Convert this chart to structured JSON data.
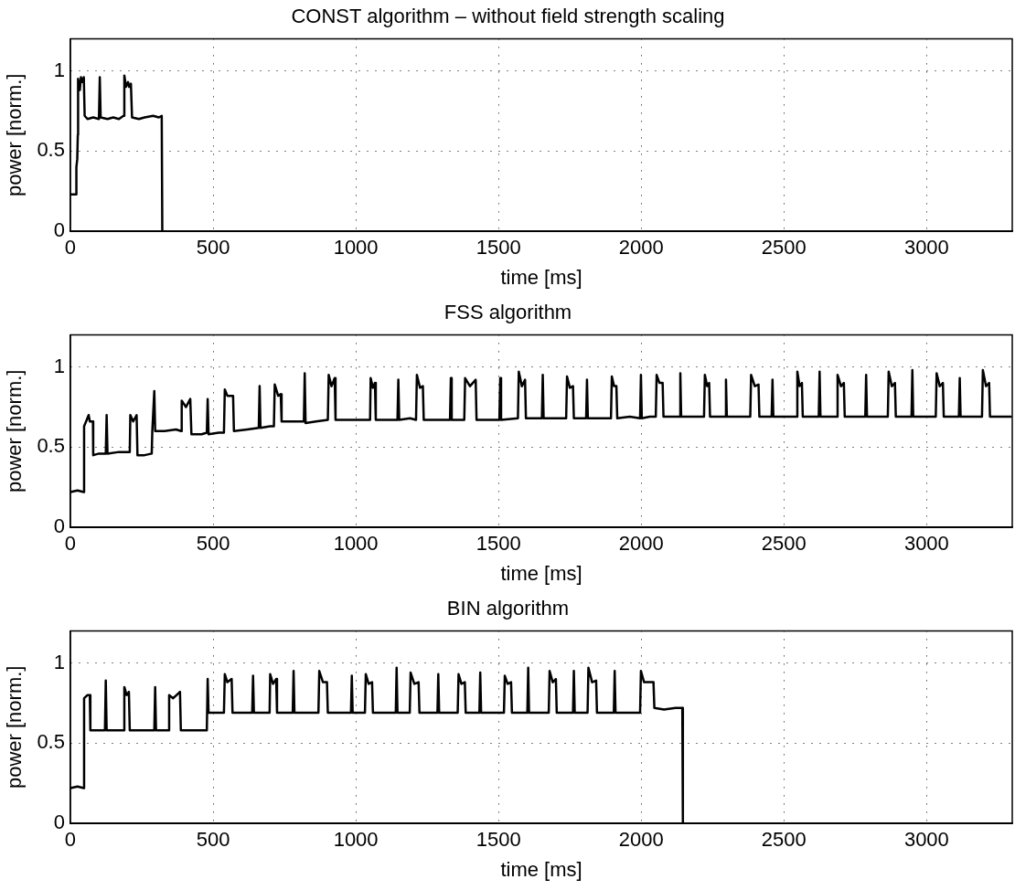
{
  "chart_data": [
    {
      "type": "line",
      "title": "CONST algorithm – without field strength scaling",
      "xlabel": "time [ms]",
      "ylabel": "power [norm.]",
      "xlim": [
        0,
        3300
      ],
      "xticks": [
        0,
        500,
        1000,
        1500,
        2000,
        2500,
        3000
      ],
      "ylim": [
        0,
        1.2
      ],
      "yticks": [
        0,
        0.5,
        1
      ],
      "grid": true,
      "line_style": "solid",
      "x": [
        0,
        20,
        21,
        24,
        26,
        27,
        33,
        37,
        42,
        47,
        50,
        60,
        80,
        100,
        103,
        106,
        130,
        150,
        170,
        186,
        189,
        195,
        202,
        206,
        212,
        216,
        240,
        260,
        290,
        310,
        320,
        322,
        3300
      ],
      "series": [
        {
          "color": "#000000",
          "values": [
            0.23,
            0.23,
            0.4,
            0.45,
            0.6,
            0.95,
            0.88,
            0.96,
            0.93,
            0.96,
            0.72,
            0.7,
            0.71,
            0.7,
            0.96,
            0.71,
            0.7,
            0.71,
            0.7,
            0.72,
            0.97,
            0.9,
            0.93,
            0.9,
            0.92,
            0.71,
            0.7,
            0.71,
            0.72,
            0.71,
            0.72,
            0,
            0
          ]
        }
      ]
    },
    {
      "type": "line",
      "title": "FSS algorithm",
      "xlabel": "time [ms]",
      "ylabel": "power [norm.]",
      "xlim": [
        0,
        3300
      ],
      "xticks": [
        0,
        500,
        1000,
        1500,
        2000,
        2500,
        3000
      ],
      "ylim": [
        0,
        1.2
      ],
      "yticks": [
        0,
        0.5,
        1
      ],
      "grid": true,
      "line_style": "solid",
      "x": [
        0,
        25,
        47,
        48,
        55,
        64,
        68,
        79,
        80,
        100,
        124,
        127,
        130,
        170,
        200,
        208,
        210,
        220,
        232,
        235,
        260,
        285,
        287,
        294,
        297,
        330,
        370,
        388,
        390,
        405,
        420,
        424,
        460,
        478,
        481,
        484,
        520,
        538,
        541,
        550,
        570,
        573,
        620,
        660,
        663,
        666,
        700,
        713,
        716,
        728,
        737,
        740,
        780,
        818,
        821,
        824,
        860,
        902,
        905,
        915,
        926,
        929,
        980,
        1030,
        1050,
        1052,
        1060,
        1067,
        1070,
        1110,
        1146,
        1149,
        1152,
        1190,
        1211,
        1214,
        1225,
        1235,
        1238,
        1290,
        1330,
        1333,
        1336,
        1380,
        1383,
        1400,
        1420,
        1423,
        1470,
        1503,
        1506,
        1509,
        1568,
        1571,
        1582,
        1593,
        1596,
        1630,
        1652,
        1655,
        1658,
        1700,
        1737,
        1740,
        1750,
        1761,
        1764,
        1790,
        1807,
        1810,
        1813,
        1860,
        1894,
        1897,
        1905,
        1913,
        1916,
        1960,
        1996,
        1999,
        2002,
        2030,
        2051,
        2054,
        2064,
        2075,
        2078,
        2110,
        2134,
        2137,
        2140,
        2190,
        2220,
        2223,
        2231,
        2238,
        2241,
        2270,
        2294,
        2297,
        2300,
        2350,
        2382,
        2385,
        2398,
        2411,
        2414,
        2440,
        2457,
        2460,
        2463,
        2510,
        2544,
        2547,
        2555,
        2563,
        2566,
        2600,
        2622,
        2625,
        2628,
        2660,
        2685,
        2688,
        2700,
        2710,
        2713,
        2750,
        2785,
        2788,
        2791,
        2830,
        2864,
        2867,
        2878,
        2889,
        2892,
        2920,
        2947,
        2950,
        2953,
        3000,
        3032,
        3035,
        3046,
        3057,
        3060,
        3090,
        3113,
        3116,
        3119,
        3160,
        3194,
        3197,
        3208,
        3219,
        3222,
        3260,
        3295
      ],
      "series": [
        {
          "color": "#000000",
          "values": [
            0.22,
            0.23,
            0.22,
            0.63,
            0.66,
            0.7,
            0.66,
            0.66,
            0.45,
            0.46,
            0.46,
            0.7,
            0.46,
            0.47,
            0.47,
            0.47,
            0.7,
            0.66,
            0.7,
            0.45,
            0.45,
            0.46,
            0.6,
            0.85,
            0.6,
            0.6,
            0.61,
            0.6,
            0.79,
            0.75,
            0.8,
            0.58,
            0.58,
            0.59,
            0.8,
            0.58,
            0.59,
            0.59,
            0.86,
            0.82,
            0.82,
            0.6,
            0.61,
            0.62,
            0.88,
            0.62,
            0.63,
            0.63,
            0.89,
            0.82,
            0.83,
            0.66,
            0.66,
            0.66,
            0.96,
            0.65,
            0.66,
            0.67,
            0.95,
            0.88,
            0.93,
            0.67,
            0.67,
            0.67,
            0.67,
            0.93,
            0.87,
            0.9,
            0.67,
            0.67,
            0.67,
            0.92,
            0.67,
            0.68,
            0.67,
            0.95,
            0.87,
            0.88,
            0.67,
            0.67,
            0.67,
            0.93,
            0.67,
            0.67,
            0.93,
            0.88,
            0.92,
            0.67,
            0.67,
            0.67,
            0.93,
            0.67,
            0.68,
            0.97,
            0.88,
            0.92,
            0.68,
            0.68,
            0.68,
            0.95,
            0.68,
            0.68,
            0.68,
            0.94,
            0.87,
            0.88,
            0.68,
            0.68,
            0.68,
            0.92,
            0.68,
            0.68,
            0.68,
            0.94,
            0.88,
            0.88,
            0.68,
            0.69,
            0.68,
            0.95,
            0.68,
            0.69,
            0.69,
            0.95,
            0.9,
            0.9,
            0.69,
            0.69,
            0.69,
            0.96,
            0.69,
            0.69,
            0.69,
            0.95,
            0.88,
            0.9,
            0.69,
            0.69,
            0.69,
            0.92,
            0.69,
            0.69,
            0.69,
            0.95,
            0.88,
            0.89,
            0.69,
            0.69,
            0.69,
            0.92,
            0.69,
            0.69,
            0.69,
            0.97,
            0.88,
            0.9,
            0.69,
            0.69,
            0.69,
            0.97,
            0.69,
            0.69,
            0.69,
            0.95,
            0.88,
            0.9,
            0.69,
            0.69,
            0.69,
            0.95,
            0.69,
            0.69,
            0.69,
            0.97,
            0.88,
            0.9,
            0.69,
            0.69,
            0.69,
            0.98,
            0.69,
            0.69,
            0.69,
            0.96,
            0.88,
            0.9,
            0.69,
            0.69,
            0.69,
            0.93,
            0.69,
            0.69,
            0.69,
            0.98,
            0.88,
            0.9,
            0.69,
            0.69,
            0.69
          ]
        }
      ]
    },
    {
      "type": "line",
      "title": "BIN algorithm",
      "xlabel": "time [ms]",
      "ylabel": "power [norm.]",
      "xlim": [
        0,
        3300
      ],
      "xticks": [
        0,
        500,
        1000,
        1500,
        2000,
        2500,
        3000
      ],
      "ylim": [
        0,
        1.2
      ],
      "yticks": [
        0,
        0.5,
        1
      ],
      "grid": true,
      "line_style": "solid",
      "x": [
        0,
        25,
        47,
        48,
        60,
        68,
        70,
        100,
        121,
        124,
        127,
        160,
        187,
        189,
        197,
        205,
        208,
        250,
        294,
        297,
        300,
        330,
        344,
        346,
        360,
        384,
        387,
        430,
        478,
        481,
        484,
        510,
        538,
        541,
        550,
        565,
        568,
        600,
        637,
        640,
        643,
        680,
        698,
        700,
        710,
        721,
        724,
        760,
        779,
        782,
        785,
        830,
        869,
        872,
        885,
        899,
        902,
        950,
        983,
        986,
        989,
        1010,
        1032,
        1035,
        1045,
        1057,
        1060,
        1100,
        1140,
        1143,
        1146,
        1170,
        1189,
        1192,
        1205,
        1220,
        1223,
        1260,
        1286,
        1289,
        1292,
        1330,
        1357,
        1360,
        1370,
        1382,
        1385,
        1410,
        1433,
        1436,
        1439,
        1480,
        1519,
        1522,
        1532,
        1544,
        1547,
        1580,
        1601,
        1604,
        1607,
        1650,
        1676,
        1679,
        1690,
        1701,
        1704,
        1740,
        1761,
        1764,
        1767,
        1790,
        1812,
        1815,
        1828,
        1842,
        1845,
        1880,
        1904,
        1907,
        1910,
        1950,
        1996,
        1999,
        2010,
        2043,
        2046,
        2080,
        2120,
        2144,
        2146,
        3300
      ],
      "series": [
        {
          "color": "#000000",
          "values": [
            0.22,
            0.23,
            0.22,
            0.78,
            0.8,
            0.8,
            0.58,
            0.58,
            0.58,
            0.89,
            0.58,
            0.58,
            0.58,
            0.85,
            0.8,
            0.82,
            0.58,
            0.58,
            0.58,
            0.85,
            0.58,
            0.58,
            0.58,
            0.8,
            0.78,
            0.82,
            0.58,
            0.58,
            0.58,
            0.9,
            0.69,
            0.69,
            0.69,
            0.93,
            0.88,
            0.9,
            0.69,
            0.69,
            0.69,
            0.92,
            0.69,
            0.69,
            0.69,
            0.93,
            0.87,
            0.9,
            0.69,
            0.69,
            0.69,
            0.95,
            0.69,
            0.69,
            0.69,
            0.95,
            0.88,
            0.88,
            0.69,
            0.69,
            0.69,
            0.92,
            0.69,
            0.69,
            0.69,
            0.93,
            0.87,
            0.88,
            0.69,
            0.69,
            0.69,
            0.97,
            0.69,
            0.69,
            0.69,
            0.94,
            0.87,
            0.88,
            0.69,
            0.69,
            0.69,
            0.93,
            0.69,
            0.69,
            0.69,
            0.93,
            0.87,
            0.88,
            0.69,
            0.69,
            0.69,
            0.94,
            0.69,
            0.69,
            0.69,
            0.92,
            0.87,
            0.88,
            0.69,
            0.69,
            0.69,
            0.97,
            0.69,
            0.69,
            0.69,
            0.95,
            0.88,
            0.9,
            0.69,
            0.69,
            0.69,
            0.95,
            0.69,
            0.69,
            0.69,
            0.97,
            0.88,
            0.89,
            0.69,
            0.69,
            0.69,
            0.95,
            0.69,
            0.69,
            0.69,
            0.95,
            0.88,
            0.88,
            0.72,
            0.71,
            0.72,
            0.72,
            0,
            0
          ]
        }
      ]
    }
  ]
}
